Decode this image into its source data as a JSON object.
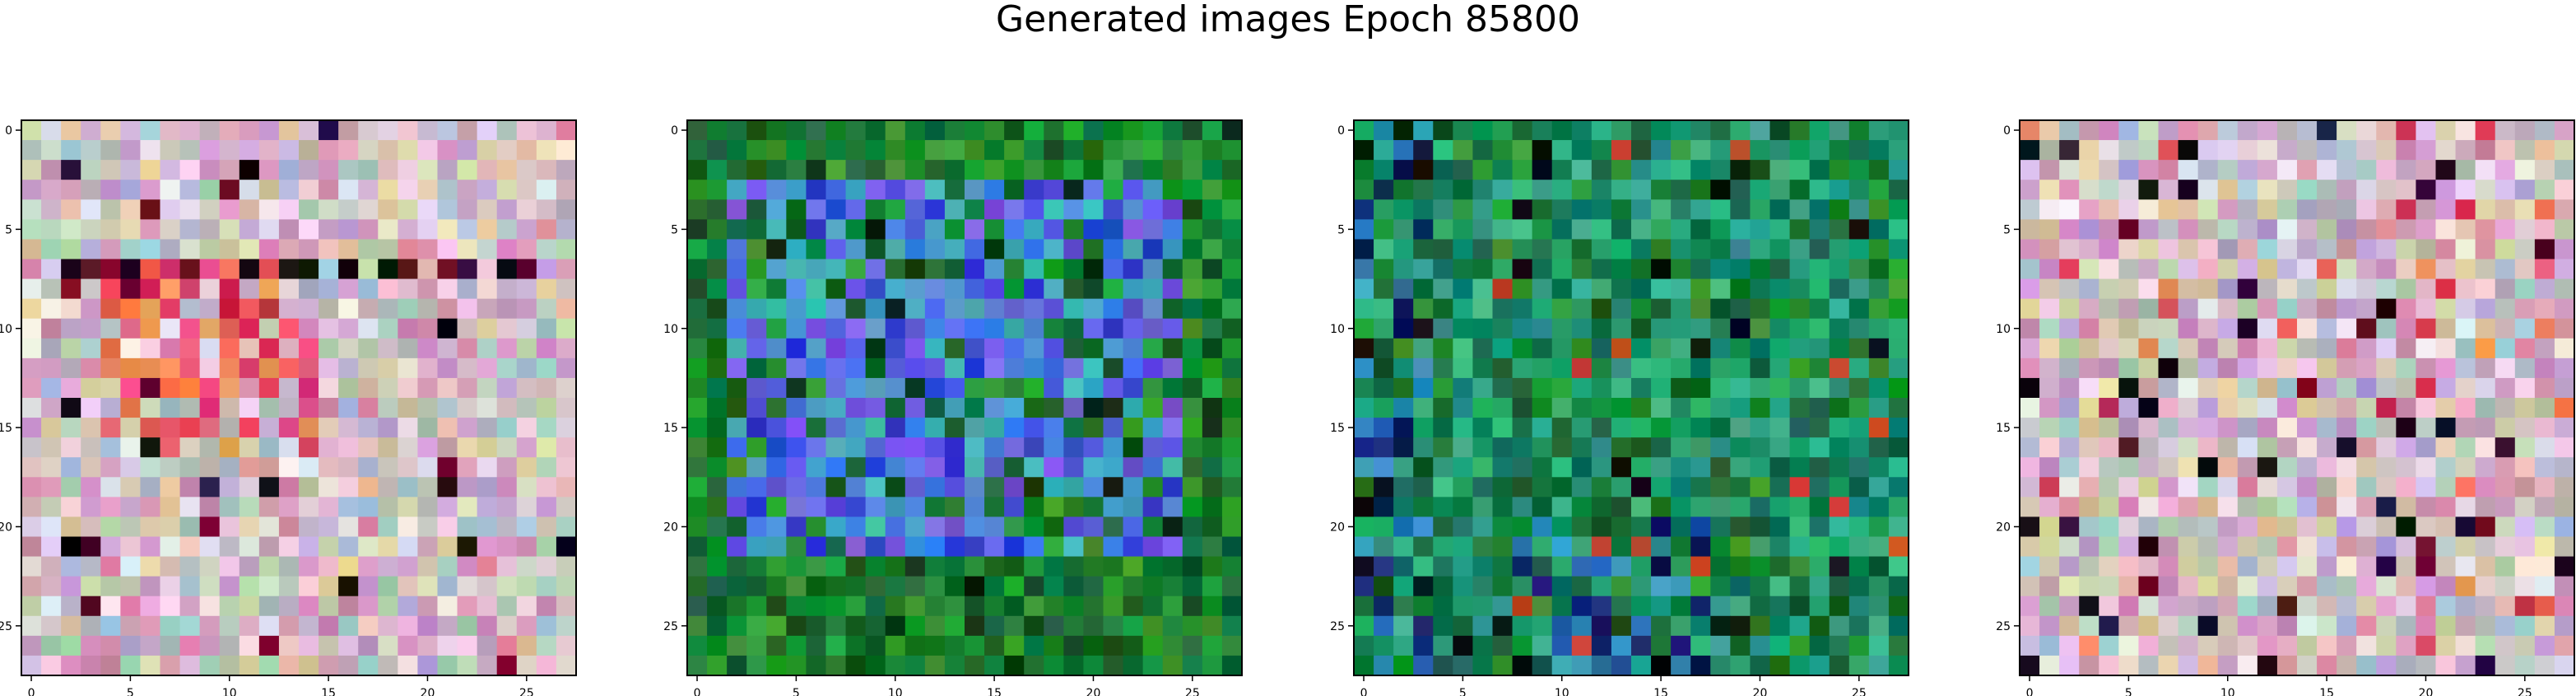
{
  "figure": {
    "title": "Generated images Epoch 85800"
  },
  "chart_data": [
    {
      "type": "heatmap",
      "title": "",
      "xlabel": "",
      "ylabel": "",
      "xlim": [
        -0.5,
        27.5
      ],
      "ylim": [
        27.5,
        -0.5
      ],
      "xticks": [
        0,
        5,
        10,
        15,
        20,
        25
      ],
      "yticks": [
        0,
        5,
        10,
        15,
        20,
        25
      ],
      "grid": false,
      "grid_size": [
        28,
        28
      ],
      "dominant_palette": "pastel pink / lavender / beige with warm red-orange band across rows 7-16"
    },
    {
      "type": "heatmap",
      "title": "",
      "xlabel": "",
      "ylabel": "",
      "xlim": [
        -0.5,
        27.5
      ],
      "ylim": [
        27.5,
        -0.5
      ],
      "xticks": [
        0,
        5,
        10,
        15,
        20,
        25
      ],
      "yticks": [
        0,
        5,
        10,
        15,
        20,
        25
      ],
      "grid": false,
      "grid_size": [
        28,
        28
      ],
      "dominant_palette": "green border with blue / violet / teal central block"
    },
    {
      "type": "heatmap",
      "title": "",
      "xlabel": "",
      "ylabel": "",
      "xlim": [
        -0.5,
        27.5
      ],
      "ylim": [
        27.5,
        -0.5
      ],
      "xticks": [
        0,
        5,
        10,
        15,
        20,
        25
      ],
      "yticks": [
        0,
        5,
        10,
        15,
        20,
        25
      ],
      "grid": false,
      "grid_size": [
        28,
        28
      ],
      "dominant_palette": "dark green / teal with blue patches and a few red-orange cells"
    },
    {
      "type": "heatmap",
      "title": "",
      "xlabel": "",
      "ylabel": "",
      "xlim": [
        -0.5,
        27.5
      ],
      "ylim": [
        27.5,
        -0.5
      ],
      "xticks": [
        0,
        5,
        10,
        15,
        20,
        25
      ],
      "yticks": [
        0,
        5,
        10,
        15,
        20,
        25
      ],
      "grid": false,
      "grid_size": [
        28,
        28
      ],
      "dominant_palette": "pastel pink / lavender / beige with scattered dark and red cells"
    }
  ]
}
